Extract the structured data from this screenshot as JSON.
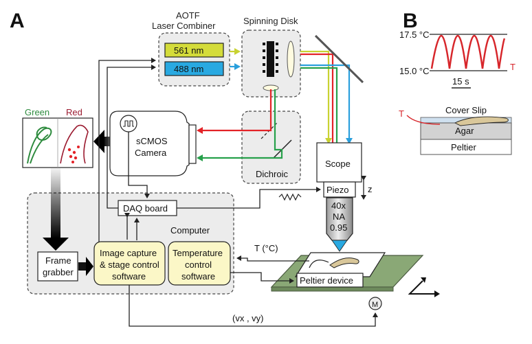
{
  "panels": {
    "a": "A",
    "b": "B"
  },
  "aotf": {
    "title_line1": "AOTF",
    "title_line2": "Laser Combiner",
    "laser1": "561 nm",
    "laser2": "488 nm",
    "laser1_color": "#c8d232",
    "laser2_color": "#29a9e1"
  },
  "spinning_disk": {
    "title": "Spinning Disk"
  },
  "camera": {
    "line1": "sCMOS",
    "line2": "Camera"
  },
  "dichroic": {
    "label": "Dichroic"
  },
  "scope": {
    "label": "Scope"
  },
  "piezo": {
    "label": "Piezo",
    "axis": "z"
  },
  "objective": {
    "line1": "40x",
    "line2": "NA",
    "line3": "0.95"
  },
  "channels": {
    "green": "Green",
    "red": "Red",
    "green_color": "#2e8b3e",
    "red_color": "#9b1b30"
  },
  "computer": {
    "label": "Computer"
  },
  "daq": {
    "label": "DAQ board"
  },
  "frame_grabber": {
    "line1": "Frame",
    "line2": "grabber"
  },
  "image_capture": {
    "line1": "Image capture",
    "line2": "& stage control",
    "line3": "software"
  },
  "temp_control": {
    "line1": "Temperature",
    "line2": "control",
    "line3": "software"
  },
  "temperature_label": "T (°C)",
  "peltier_device": "Peltier device",
  "motor": "M",
  "velocity": "(vx , vy)",
  "panel_b": {
    "temp_high": "17.5 °C",
    "temp_low": "15.0 °C",
    "trace_label": "T",
    "scale_bar": "15 s",
    "cover_slip": "Cover Slip",
    "agar": "Agar",
    "peltier": "Peltier",
    "probe_label": "T",
    "trace_color": "#d7262b"
  }
}
